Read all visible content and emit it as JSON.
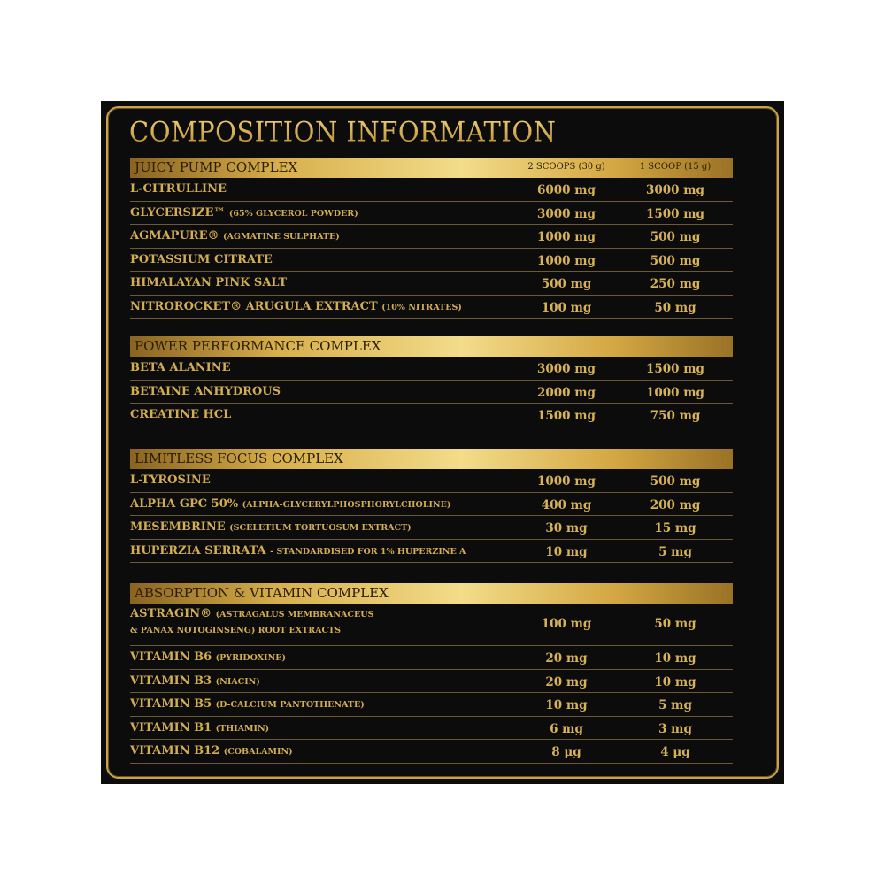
{
  "title": "COMPOSITION INFORMATION",
  "columns": [
    "2 SCOOPS (30 g)",
    "1 SCOOP (15 g)"
  ],
  "colors": {
    "background": "#0c0c0d",
    "gold": "#d3ad52",
    "band_text": "#2a1c05"
  },
  "sections": [
    {
      "name": "JUICY PUMP COMPLEX",
      "rows": [
        {
          "name": "L-CITRULLINE",
          "note": "",
          "v1": "6000 mg",
          "v2": "3000 mg"
        },
        {
          "name": "GLYCERSIZE™",
          "note": "(65% GLYCEROL POWDER)",
          "v1": "3000 mg",
          "v2": "1500 mg"
        },
        {
          "name": "AGMAPURE®",
          "note": "(AGMATINE SULPHATE)",
          "v1": "1000 mg",
          "v2": "500 mg"
        },
        {
          "name": "POTASSIUM CITRATE",
          "note": "",
          "v1": "1000 mg",
          "v2": "500 mg"
        },
        {
          "name": "HIMALAYAN PINK SALT",
          "note": "",
          "v1": "500 mg",
          "v2": "250 mg"
        },
        {
          "name": "NITROROCKET® ARUGULA EXTRACT",
          "note": "(10% NITRATES)",
          "v1": "100 mg",
          "v2": "50 mg"
        }
      ]
    },
    {
      "name": "POWER PERFORMANCE COMPLEX",
      "rows": [
        {
          "name": "BETA ALANINE",
          "note": "",
          "v1": "3000 mg",
          "v2": "1500 mg"
        },
        {
          "name": "BETAINE ANHYDROUS",
          "note": "",
          "v1": "2000 mg",
          "v2": "1000 mg"
        },
        {
          "name": "CREATINE HCL",
          "note": "",
          "v1": "1500 mg",
          "v2": "750 mg"
        }
      ]
    },
    {
      "name": "LIMITLESS FOCUS COMPLEX",
      "rows": [
        {
          "name": "L-TYROSINE",
          "note": "",
          "v1": "1000 mg",
          "v2": "500 mg"
        },
        {
          "name": "ALPHA GPC 50%",
          "note": "(ALPHA-GLYCERYLPHOSPHORYLCHOLINE)",
          "v1": "400 mg",
          "v2": "200 mg"
        },
        {
          "name": "MESEMBRINE",
          "note": "(SCELETIUM TORTUOSUM EXTRACT)",
          "v1": "30 mg",
          "v2": "15 mg"
        },
        {
          "name": "HUPERZIA SERRATA",
          "note": "- STANDARDISED FOR 1% HUPERZINE A",
          "v1": "10 mg",
          "v2": "5 mg"
        }
      ]
    },
    {
      "name": "ABSORPTION & VITAMIN COMPLEX",
      "rows": [
        {
          "name": "ASTRAGIN®",
          "note": "(ASTRAGALUS MEMBRANACEUS",
          "note2": "& PANAX NOTOGINSENG) ROOT EXTRACTS",
          "v1": "100 mg",
          "v2": "50 mg"
        },
        {
          "name": "VITAMIN B6",
          "note": "(PYRIDOXINE)",
          "v1": "20 mg",
          "v2": "10 mg"
        },
        {
          "name": "VITAMIN B3",
          "note": "(NIACIN)",
          "v1": "20 mg",
          "v2": "10 mg"
        },
        {
          "name": "VITAMIN B5",
          "note": "(D-CALCIUM PANTOTHENATE)",
          "v1": "10 mg",
          "v2": "5 mg"
        },
        {
          "name": "VITAMIN B1",
          "note": "(THIAMIN)",
          "v1": "6 mg",
          "v2": "3 mg"
        },
        {
          "name": "VITAMIN B12",
          "note": "(COBALAMIN)",
          "v1": "8 µg",
          "v2": "4 µg"
        }
      ]
    }
  ]
}
